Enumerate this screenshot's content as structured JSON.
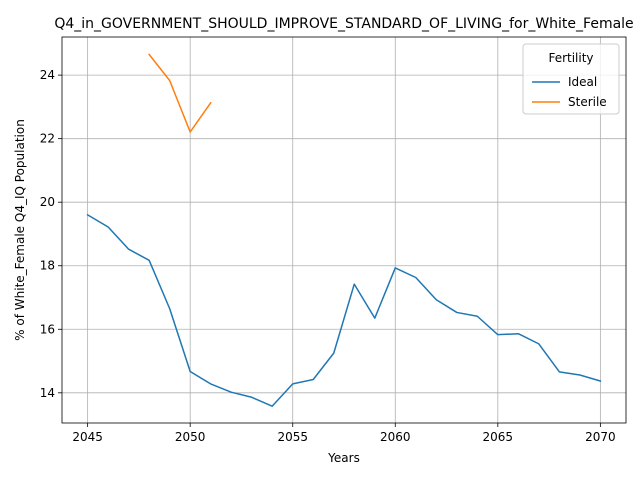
{
  "chart_data": {
    "type": "line",
    "title": "Q4_in_GOVERNMENT_SHOULD_IMPROVE_STANDARD_OF_LIVING_for_White_Female",
    "xlabel": "Years",
    "ylabel": "% of White_Female Q4_IQ Population",
    "xlim": [
      2043.75,
      2071.25
    ],
    "ylim": [
      13.05,
      25.2
    ],
    "xticks": [
      2045,
      2050,
      2055,
      2060,
      2065,
      2070
    ],
    "yticks": [
      14,
      16,
      18,
      20,
      22,
      24
    ],
    "grid": true,
    "legend": {
      "title": "Fertility",
      "placement": "top-right"
    },
    "series": [
      {
        "name": "Ideal",
        "color": "#1f77b4",
        "x": [
          2045,
          2046,
          2047,
          2048,
          2049,
          2050,
          2051,
          2052,
          2053,
          2054,
          2055,
          2056,
          2057,
          2058,
          2059,
          2060,
          2061,
          2062,
          2063,
          2064,
          2065,
          2066,
          2067,
          2068,
          2069,
          2070
        ],
        "y": [
          19.6,
          19.22,
          18.52,
          18.17,
          16.65,
          14.67,
          14.28,
          14.02,
          13.86,
          13.58,
          14.28,
          14.42,
          15.25,
          17.42,
          16.35,
          17.93,
          17.63,
          16.93,
          16.53,
          16.41,
          15.83,
          15.86,
          15.54,
          14.66,
          14.56,
          14.37
        ]
      },
      {
        "name": "Sterile",
        "color": "#ff7f0e",
        "x": [
          2048,
          2049,
          2050,
          2051
        ],
        "y": [
          24.65,
          23.83,
          22.21,
          23.13
        ]
      }
    ]
  }
}
